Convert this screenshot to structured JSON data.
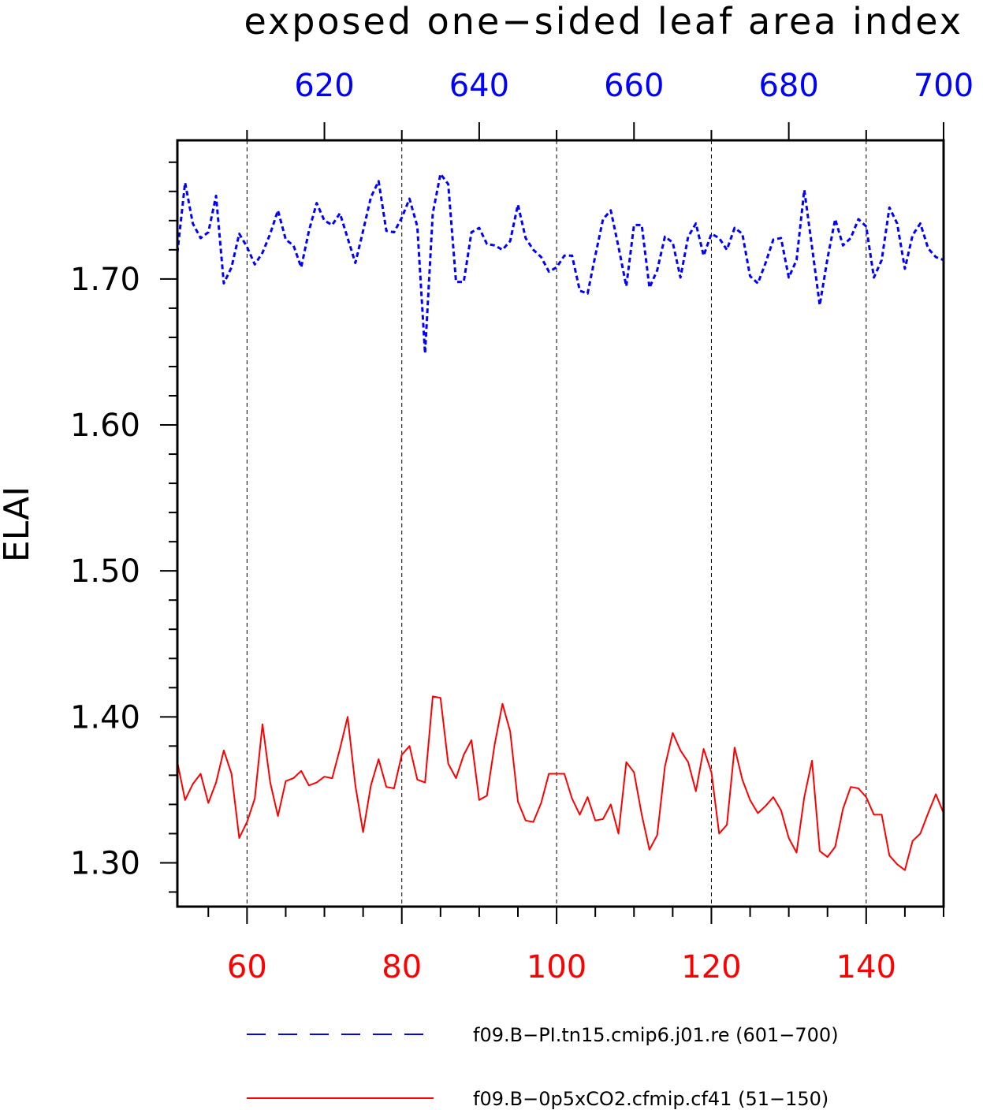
{
  "chart_data": {
    "type": "line",
    "title": "exposed one−sided leaf area index",
    "ylabel": "ELAI",
    "ylim": [
      1.27,
      1.795
    ],
    "yticks": [
      1.3,
      1.4,
      1.5,
      1.6,
      1.7
    ],
    "ytick_labels": [
      "1.30",
      "1.40",
      "1.50",
      "1.60",
      "1.70"
    ],
    "x_bottom": {
      "range": [
        51,
        150
      ],
      "ticks": [
        60,
        80,
        100,
        120,
        140
      ],
      "labels": [
        "60",
        "80",
        "100",
        "120",
        "140"
      ],
      "color": "#ff0000"
    },
    "x_top": {
      "range": [
        601,
        700
      ],
      "ticks": [
        620,
        640,
        660,
        680,
        700
      ],
      "labels": [
        "620",
        "640",
        "660",
        "680",
        "700"
      ],
      "color": "#0000ff"
    },
    "grid": "dashed vertical lines at bottom-axis major ticks",
    "legend_position": "bottom",
    "series": [
      {
        "name": "f09.B−PI.tn15.cmip6.j01.re (601−700)",
        "axis": "top",
        "color": "#0000ff",
        "style": "dashed",
        "x_start": 601,
        "values": [
          1.718,
          1.766,
          1.738,
          1.728,
          1.732,
          1.757,
          1.697,
          1.708,
          1.731,
          1.722,
          1.71,
          1.718,
          1.731,
          1.747,
          1.727,
          1.723,
          1.708,
          1.733,
          1.752,
          1.74,
          1.737,
          1.745,
          1.728,
          1.711,
          1.733,
          1.756,
          1.767,
          1.733,
          1.732,
          1.742,
          1.755,
          1.736,
          1.649,
          1.745,
          1.772,
          1.765,
          1.698,
          1.698,
          1.732,
          1.735,
          1.724,
          1.723,
          1.72,
          1.726,
          1.751,
          1.728,
          1.72,
          1.715,
          1.705,
          1.708,
          1.716,
          1.716,
          1.692,
          1.69,
          1.716,
          1.741,
          1.747,
          1.722,
          1.695,
          1.737,
          1.737,
          1.694,
          1.706,
          1.729,
          1.725,
          1.701,
          1.729,
          1.738,
          1.716,
          1.731,
          1.728,
          1.72,
          1.735,
          1.731,
          1.702,
          1.697,
          1.711,
          1.727,
          1.728,
          1.701,
          1.713,
          1.761,
          1.722,
          1.682,
          1.714,
          1.741,
          1.723,
          1.728,
          1.741,
          1.736,
          1.701,
          1.713,
          1.749,
          1.738,
          1.707,
          1.73,
          1.738,
          1.721,
          1.715,
          1.713
        ]
      },
      {
        "name": "f09.B−0p5xCO2.cfmip.cf41 (51−150)",
        "axis": "bottom",
        "color": "#ff0000",
        "style": "solid",
        "x_start": 51,
        "values": [
          1.369,
          1.343,
          1.354,
          1.361,
          1.341,
          1.355,
          1.377,
          1.361,
          1.317,
          1.328,
          1.344,
          1.395,
          1.355,
          1.332,
          1.356,
          1.358,
          1.363,
          1.353,
          1.355,
          1.359,
          1.358,
          1.378,
          1.4,
          1.353,
          1.321,
          1.353,
          1.371,
          1.352,
          1.351,
          1.374,
          1.38,
          1.357,
          1.355,
          1.414,
          1.413,
          1.368,
          1.358,
          1.374,
          1.384,
          1.343,
          1.346,
          1.381,
          1.409,
          1.39,
          1.342,
          1.329,
          1.328,
          1.341,
          1.361,
          1.361,
          1.361,
          1.344,
          1.333,
          1.345,
          1.329,
          1.33,
          1.34,
          1.32,
          1.369,
          1.362,
          1.333,
          1.309,
          1.319,
          1.366,
          1.389,
          1.377,
          1.369,
          1.349,
          1.378,
          1.362,
          1.32,
          1.326,
          1.379,
          1.357,
          1.343,
          1.334,
          1.339,
          1.345,
          1.336,
          1.317,
          1.307,
          1.345,
          1.37,
          1.308,
          1.304,
          1.311,
          1.337,
          1.352,
          1.351,
          1.345,
          1.333,
          1.333,
          1.305,
          1.299,
          1.295,
          1.315,
          1.32,
          1.334,
          1.347,
          1.334
        ]
      }
    ]
  }
}
